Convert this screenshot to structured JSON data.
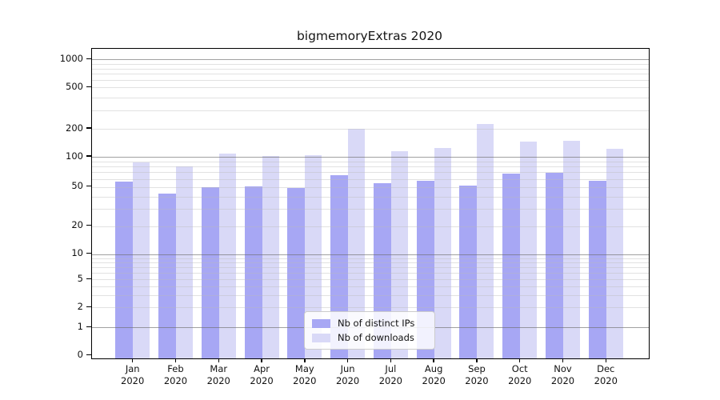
{
  "title": "bigmemoryExtras 2020",
  "chart_data": {
    "type": "bar",
    "title": "bigmemoryExtras 2020",
    "categories": [
      "Jan",
      "Feb",
      "Mar",
      "Apr",
      "May",
      "Jun",
      "Jul",
      "Aug",
      "Sep",
      "Oct",
      "Nov",
      "Dec"
    ],
    "x_year_label": "2020",
    "series": [
      {
        "name": "Nb of distinct IPs",
        "color": "#a7a7f4",
        "values": [
          57,
          43,
          50,
          51,
          49,
          66,
          55,
          58,
          52,
          68,
          69,
          58
        ]
      },
      {
        "name": "Nb of downloads",
        "color": "#d9d9f7",
        "values": [
          88,
          80,
          108,
          101,
          104,
          201,
          116,
          125,
          222,
          145,
          149,
          122
        ]
      }
    ],
    "yscale": "symlog",
    "yticks": [
      0,
      1,
      2,
      5,
      10,
      20,
      50,
      100,
      200,
      500,
      1000
    ],
    "ylim": [
      0,
      1200
    ],
    "grid": "horizontal; faint log minors, darker decade lines at 1/10/100/1000",
    "legend_position": "lower center, inside plot"
  },
  "colors": {
    "bar_distinct_ips": "#a7a7f4",
    "bar_downloads": "#d9d9f7",
    "axis": "#000000",
    "text": "#111111",
    "legend_border": "#cccccc"
  }
}
